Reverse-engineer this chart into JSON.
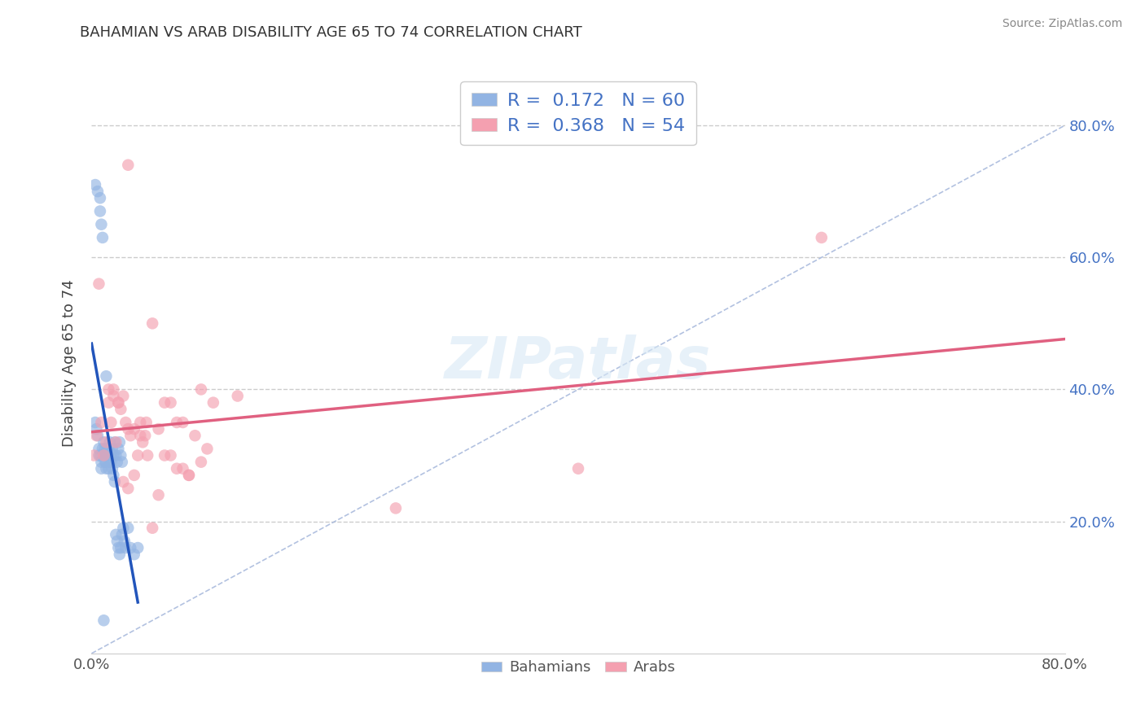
{
  "title": "BAHAMIAN VS ARAB DISABILITY AGE 65 TO 74 CORRELATION CHART",
  "source": "Source: ZipAtlas.com",
  "ylabel": "Disability Age 65 to 74",
  "xlim": [
    0.0,
    0.8
  ],
  "ylim": [
    0.0,
    0.88
  ],
  "yticks": [
    0.2,
    0.4,
    0.6,
    0.8
  ],
  "yticklabels": [
    "20.0%",
    "40.0%",
    "60.0%",
    "80.0%"
  ],
  "xtick_left_label": "0.0%",
  "xtick_right_label": "80.0%",
  "bahamians_color": "#92b4e3",
  "arabs_color": "#f4a0b0",
  "bahamians_R": 0.172,
  "bahamians_N": 60,
  "arabs_R": 0.368,
  "arabs_N": 54,
  "legend_text_color": "#4472c4",
  "regression_blue_color": "#2255bb",
  "regression_pink_color": "#e06080",
  "reference_line_color": "#aabbdd",
  "bahamians_x": [
    0.003,
    0.005,
    0.007,
    0.007,
    0.008,
    0.009,
    0.01,
    0.01,
    0.011,
    0.011,
    0.012,
    0.013,
    0.013,
    0.014,
    0.015,
    0.015,
    0.016,
    0.017,
    0.018,
    0.019,
    0.02,
    0.021,
    0.022,
    0.023,
    0.024,
    0.025,
    0.003,
    0.004,
    0.005,
    0.006,
    0.006,
    0.007,
    0.008,
    0.008,
    0.009,
    0.01,
    0.011,
    0.012,
    0.013,
    0.014,
    0.015,
    0.016,
    0.017,
    0.018,
    0.019,
    0.02,
    0.021,
    0.022,
    0.023,
    0.024,
    0.025,
    0.026,
    0.027,
    0.028,
    0.03,
    0.032,
    0.035,
    0.038,
    0.01,
    0.012
  ],
  "bahamians_y": [
    0.71,
    0.7,
    0.69,
    0.67,
    0.65,
    0.63,
    0.32,
    0.3,
    0.3,
    0.31,
    0.29,
    0.3,
    0.31,
    0.28,
    0.32,
    0.3,
    0.29,
    0.31,
    0.3,
    0.32,
    0.3,
    0.29,
    0.31,
    0.32,
    0.3,
    0.29,
    0.35,
    0.34,
    0.33,
    0.31,
    0.3,
    0.3,
    0.28,
    0.29,
    0.31,
    0.3,
    0.29,
    0.28,
    0.3,
    0.31,
    0.29,
    0.3,
    0.28,
    0.27,
    0.26,
    0.18,
    0.17,
    0.16,
    0.15,
    0.16,
    0.18,
    0.19,
    0.17,
    0.16,
    0.19,
    0.16,
    0.15,
    0.16,
    0.05,
    0.42
  ],
  "arabs_x": [
    0.002,
    0.004,
    0.006,
    0.008,
    0.01,
    0.012,
    0.014,
    0.016,
    0.018,
    0.02,
    0.022,
    0.024,
    0.026,
    0.028,
    0.03,
    0.032,
    0.035,
    0.038,
    0.04,
    0.042,
    0.044,
    0.046,
    0.05,
    0.055,
    0.06,
    0.065,
    0.07,
    0.075,
    0.08,
    0.09,
    0.1,
    0.12,
    0.014,
    0.018,
    0.022,
    0.026,
    0.03,
    0.035,
    0.04,
    0.045,
    0.05,
    0.055,
    0.06,
    0.065,
    0.07,
    0.075,
    0.08,
    0.085,
    0.09,
    0.095,
    0.03,
    0.25,
    0.4,
    0.6
  ],
  "arabs_y": [
    0.3,
    0.33,
    0.56,
    0.35,
    0.3,
    0.32,
    0.38,
    0.35,
    0.4,
    0.32,
    0.38,
    0.37,
    0.39,
    0.35,
    0.34,
    0.33,
    0.27,
    0.3,
    0.35,
    0.32,
    0.33,
    0.3,
    0.5,
    0.34,
    0.38,
    0.3,
    0.28,
    0.35,
    0.27,
    0.4,
    0.38,
    0.39,
    0.4,
    0.39,
    0.38,
    0.26,
    0.25,
    0.34,
    0.33,
    0.35,
    0.19,
    0.24,
    0.3,
    0.38,
    0.35,
    0.28,
    0.27,
    0.33,
    0.29,
    0.31,
    0.74,
    0.22,
    0.28,
    0.63
  ],
  "background_color": "#ffffff",
  "grid_color": "#cccccc",
  "figsize": [
    14.06,
    8.92
  ],
  "dpi": 100
}
